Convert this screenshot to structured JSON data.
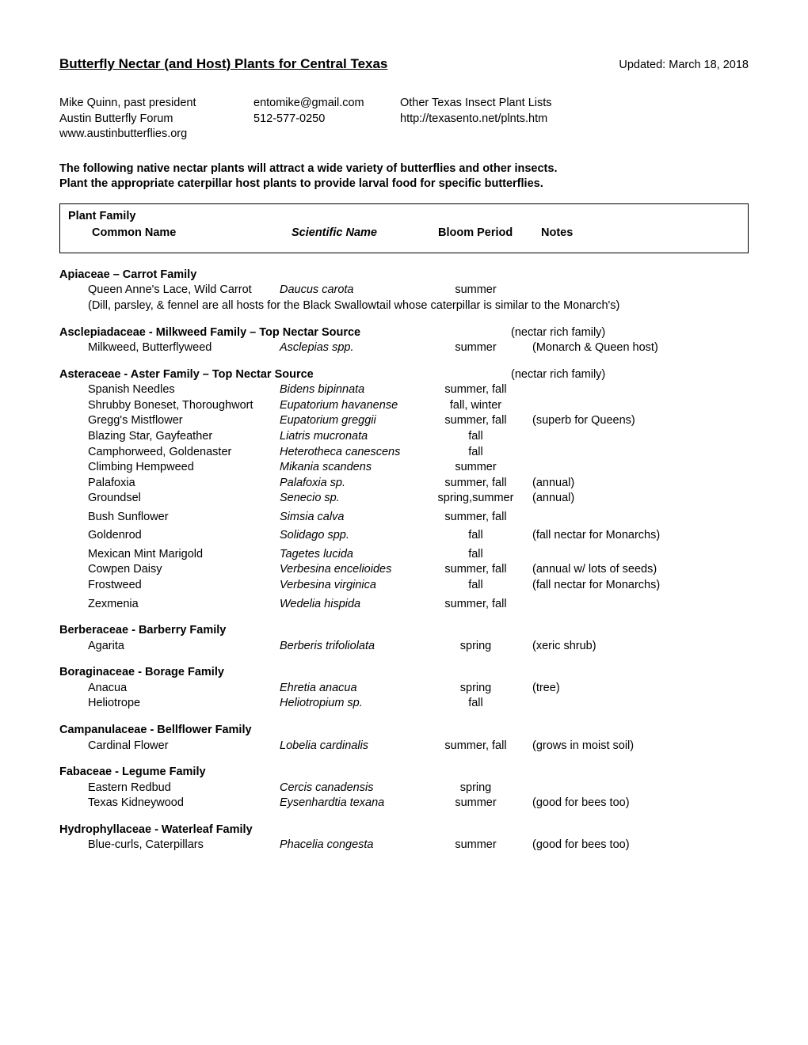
{
  "title": "Butterfly Nectar (and Host) Plants for Central Texas",
  "updated": "Updated: March 18, 2018",
  "contact": {
    "col1": [
      "Mike Quinn, past president",
      "Austin Butterfly Forum",
      "www.austinbutterflies.org"
    ],
    "col2": [
      "entomike@gmail.com",
      "512-577-0250"
    ],
    "col3": [
      "Other Texas Insect Plant Lists",
      "http://texasento.net/plnts.htm"
    ]
  },
  "intro_l1": "The following native nectar plants will attract a wide variety of butterflies and other insects.",
  "intro_l2": "Plant the appropriate caterpillar host plants to provide larval food for specific butterflies.",
  "headers": {
    "family": "Plant Family",
    "common": "Common Name",
    "scientific": "Scientific Name",
    "bloom": "Bloom Period",
    "notes": "Notes"
  },
  "families": [
    {
      "name": "Apiaceae – Carrot Family",
      "note": "",
      "plants": [
        {
          "common": "Queen Anne's Lace, Wild Carrot",
          "sci": "Daucus carota",
          "bloom": "summer",
          "notes": ""
        }
      ],
      "sub_note": "(Dill, parsley, & fennel are all hosts for the Black Swallowtail whose caterpillar is similar to the Monarch's)"
    },
    {
      "name": "Asclepiadaceae - Milkweed Family – Top Nectar Source",
      "note": "(nectar rich family)",
      "plants": [
        {
          "common": "Milkweed, Butterflyweed",
          "sci": "Asclepias spp.",
          "bloom": "summer",
          "notes": "(Monarch & Queen host)"
        }
      ]
    },
    {
      "name": "Asteraceae - Aster Family – Top Nectar Source",
      "note": "(nectar rich family)",
      "plants": [
        {
          "common": "Spanish Needles",
          "sci": "Bidens bipinnata",
          "bloom": "summer, fall",
          "notes": ""
        },
        {
          "common": "Shrubby Boneset, Thoroughwort",
          "sci": "Eupatorium havanense",
          "bloom": "fall, winter",
          "notes": ""
        },
        {
          "common": "Gregg's Mistflower",
          "sci": "Eupatorium greggii",
          "bloom": "summer, fall",
          "notes": "(superb for Queens)"
        },
        {
          "common": "Blazing Star, Gayfeather",
          "sci": "Liatris mucronata",
          "bloom": "fall",
          "notes": ""
        },
        {
          "common": "Camphorweed, Goldenaster",
          "sci": "Heterotheca canescens",
          "bloom": "fall",
          "notes": ""
        },
        {
          "common": "Climbing Hempweed",
          "sci": "Mikania scandens",
          "bloom": "summer",
          "notes": ""
        },
        {
          "common": "Palafoxia",
          "sci": "Palafoxia sp.",
          "bloom": "summer, fall",
          "notes": "(annual)"
        },
        {
          "common": "Groundsel",
          "sci": "Senecio sp.",
          "bloom": "spring,summer",
          "notes": "(annual)"
        },
        {
          "common": "Bush Sunflower",
          "sci": "Simsia calva",
          "bloom": "summer, fall",
          "notes": "",
          "gap_before": true
        },
        {
          "common": "Goldenrod",
          "sci": "Solidago spp.",
          "bloom": "fall",
          "notes": "(fall nectar for Monarchs)",
          "gap_before": true
        },
        {
          "common": "Mexican Mint Marigold",
          "sci": "Tagetes lucida",
          "bloom": "fall",
          "notes": "",
          "gap_before": true
        },
        {
          "common": "Cowpen Daisy",
          "sci": "Verbesina encelioides",
          "bloom": "summer, fall",
          "notes": "(annual w/ lots of seeds)"
        },
        {
          "common": "Frostweed",
          "sci": "Verbesina virginica",
          "bloom": "fall",
          "notes": "(fall nectar for Monarchs)"
        },
        {
          "common": "Zexmenia",
          "sci": "Wedelia hispida",
          "bloom": "summer, fall",
          "notes": "",
          "gap_before": true
        }
      ]
    },
    {
      "name": "Berberaceae - Barberry Family",
      "note": "",
      "plants": [
        {
          "common": "Agarita",
          "sci": "Berberis trifoliolata",
          "bloom": "spring",
          "notes": "(xeric shrub)"
        }
      ]
    },
    {
      "name": "Boraginaceae - Borage Family",
      "note": "",
      "plants": [
        {
          "common": "Anacua",
          "sci": "Ehretia anacua",
          "bloom": "spring",
          "notes": "(tree)"
        },
        {
          "common": "Heliotrope",
          "sci": "Heliotropium sp.",
          "bloom": "fall",
          "notes": ""
        }
      ]
    },
    {
      "name": "Campanulaceae - Bellflower Family",
      "note": "",
      "plants": [
        {
          "common": "Cardinal Flower",
          "sci": "Lobelia cardinalis",
          "bloom": "summer, fall",
          "notes": "(grows in moist soil)"
        }
      ]
    },
    {
      "name": "Fabaceae - Legume Family",
      "note": "",
      "plants": [
        {
          "common": "Eastern Redbud",
          "sci": "Cercis canadensis",
          "bloom": "spring",
          "notes": ""
        },
        {
          "common": "Texas Kidneywood",
          "sci": "Eysenhardtia texana",
          "bloom": "summer",
          "notes": "(good for bees too)"
        }
      ]
    },
    {
      "name": "Hydrophyllaceae - Waterleaf Family",
      "note": "",
      "plants": [
        {
          "common": "Blue-curls, Caterpillars",
          "sci": "Phacelia congesta",
          "bloom": "summer",
          "notes": "(good for bees too)"
        }
      ]
    }
  ]
}
